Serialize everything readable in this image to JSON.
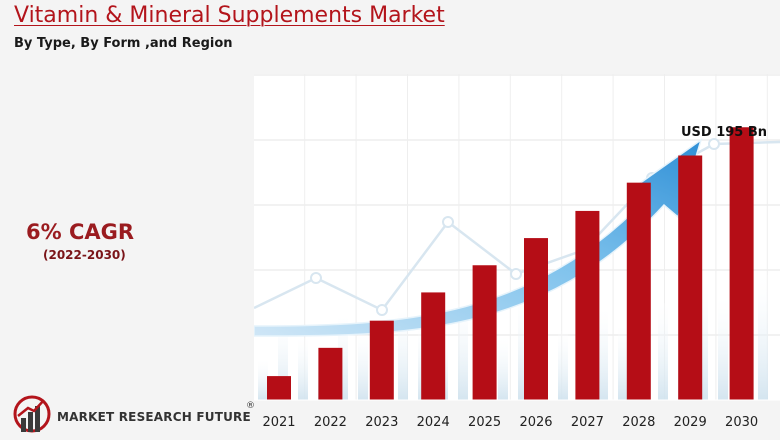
{
  "header": {
    "title": "Vitamin & Mineral Supplements Market",
    "subtitle": "By Type, By Form ,and Region"
  },
  "highlight": {
    "cagr": "6% CAGR",
    "period": "(2022-2030)"
  },
  "brand": {
    "name": "MARKET RESEARCH FUTURE",
    "registered": "®"
  },
  "colors": {
    "title": "#b3141b",
    "bar": "#b50d16",
    "arrow": "#3b9ad9",
    "cagr": "#9a1b1f"
  },
  "chart_data": {
    "type": "bar",
    "categories": [
      "2021",
      "2022",
      "2023",
      "2024",
      "2025",
      "2026",
      "2027",
      "2028",
      "2029",
      "2030"
    ],
    "values": [
      22,
      48,
      73,
      99,
      124,
      149,
      174,
      200,
      225,
      251
    ],
    "annotation": "USD 195 Bn",
    "title": "",
    "xlabel": "",
    "ylabel": "",
    "ylim": [
      0,
      300
    ],
    "grid": true,
    "trend_arrow": true
  }
}
